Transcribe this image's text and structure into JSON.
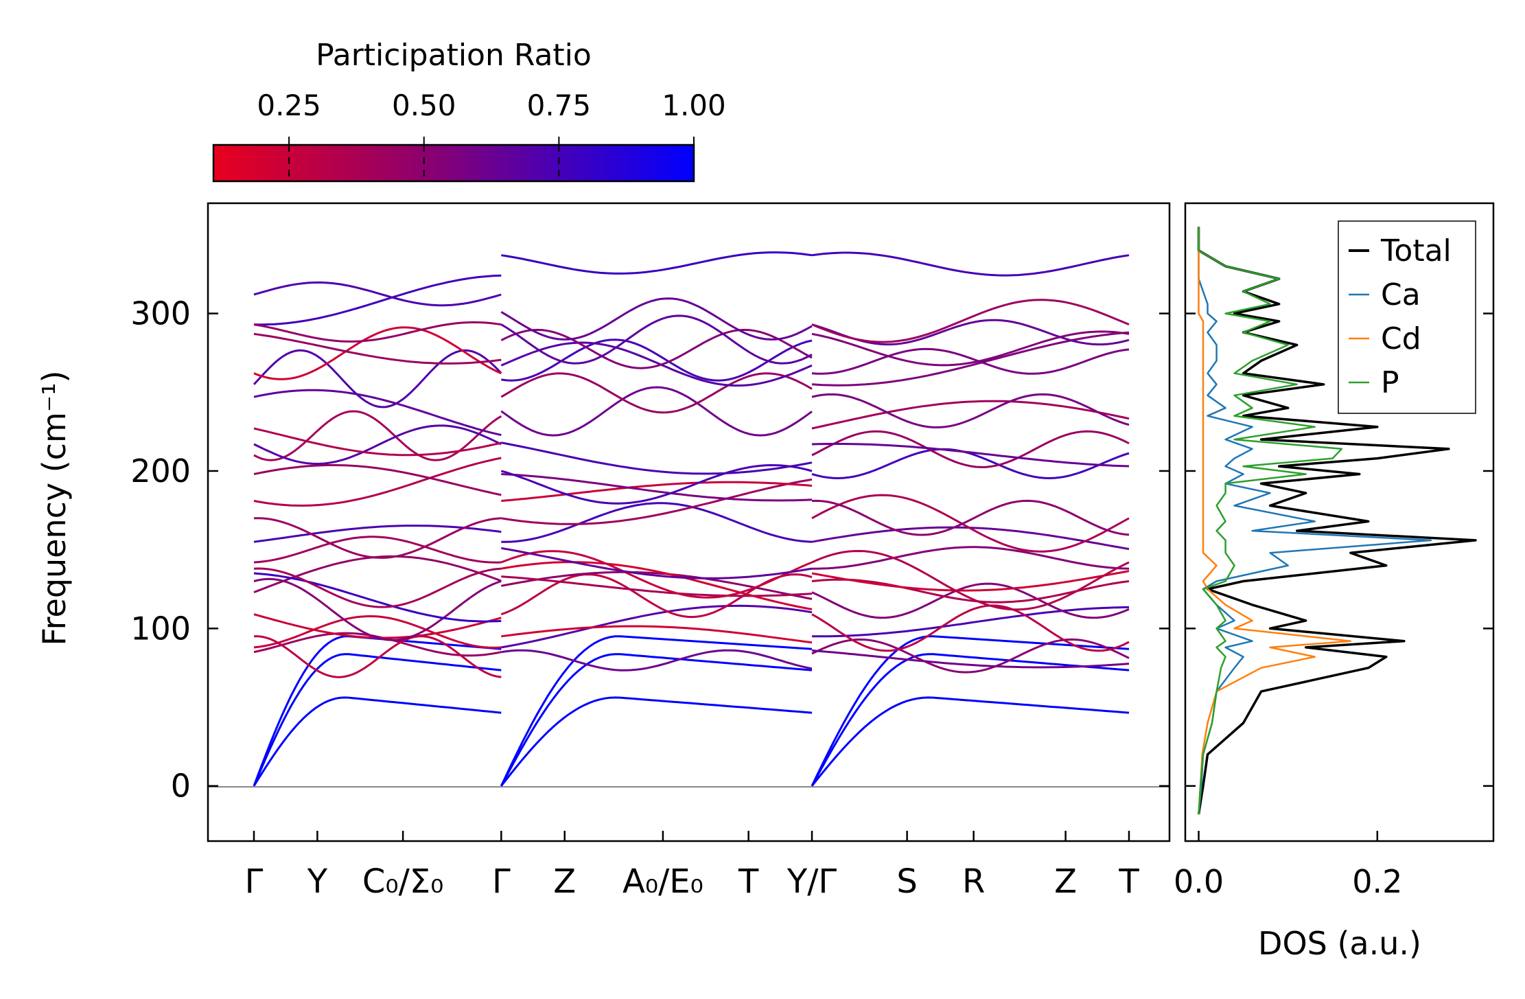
{
  "colorbar": {
    "title": "Participation Ratio",
    "ticks": [
      {
        "value": 0.25,
        "label": "0.25"
      },
      {
        "value": 0.5,
        "label": "0.50"
      },
      {
        "value": 0.75,
        "label": "0.75"
      },
      {
        "value": 1.0,
        "label": "1.00"
      }
    ],
    "range": [
      0.11,
      1.0
    ],
    "color_low": "#e8001e",
    "color_high": "#0000ff"
  },
  "chart_data": [
    {
      "type": "line",
      "name": "phonon-band-structure",
      "ylabel": "Frequency (cm⁻¹)",
      "ylim": [
        -35,
        370
      ],
      "yticks": [
        0,
        100,
        200,
        300
      ],
      "kpath_labels": [
        "Γ",
        "Y",
        "C₀/Σ₀",
        "Γ",
        "Z",
        "A₀/E₀",
        "T",
        "Y/Γ",
        "S",
        "R",
        "Z",
        "T"
      ],
      "kpath_positions": [
        0.0,
        0.2,
        0.47,
        0.78,
        0.98,
        1.29,
        1.56,
        1.76,
        2.06,
        2.27,
        2.56,
        2.76
      ],
      "segments": [
        [
          0.0,
          0.78
        ],
        [
          0.78,
          1.76
        ],
        [
          1.76,
          2.76
        ]
      ],
      "band_starts_at_segment": [
        [
          0,
          0,
          0,
          85,
          88,
          95,
          109,
          123,
          130,
          135,
          138,
          142,
          155,
          170,
          181,
          198,
          210,
          217,
          227,
          247,
          255,
          262,
          287,
          293,
          293,
          312
        ],
        [
          0,
          0,
          0,
          85,
          88,
          95,
          109,
          127,
          133,
          138,
          142,
          151,
          155,
          170,
          181,
          198,
          200,
          218,
          238,
          247,
          258,
          267,
          283,
          293,
          301,
          337
        ],
        [
          0,
          0,
          0,
          84,
          86,
          95,
          109,
          123,
          130,
          135,
          138,
          142,
          155,
          170,
          181,
          198,
          210,
          217,
          227,
          247,
          255,
          262,
          287,
          293,
          293,
          337
        ]
      ],
      "acoustic_band_max": [
        62,
        90,
        100
      ]
    },
    {
      "type": "line",
      "name": "density-of-states",
      "xlabel": "DOS (a.u.)",
      "xlim": [
        -0.015,
        0.33
      ],
      "xticks": [
        0.0,
        0.2
      ],
      "xtick_labels": [
        "0.0",
        "0.2"
      ],
      "ylim": [
        -35,
        370
      ],
      "legend_position": "top-right",
      "series": [
        {
          "name": "Total",
          "color": "#000000",
          "y": [
            -18,
            0,
            20,
            40,
            60,
            75,
            82,
            88,
            92,
            100,
            105,
            115,
            125,
            130,
            140,
            148,
            156,
            162,
            168,
            178,
            186,
            192,
            198,
            203,
            208,
            214,
            220,
            228,
            235,
            240,
            248,
            255,
            262,
            270,
            280,
            288,
            295,
            300,
            306,
            314,
            322,
            330,
            340,
            355
          ],
          "values": [
            0.0,
            0.005,
            0.01,
            0.05,
            0.07,
            0.19,
            0.21,
            0.12,
            0.23,
            0.08,
            0.12,
            0.06,
            0.01,
            0.05,
            0.21,
            0.17,
            0.31,
            0.11,
            0.19,
            0.08,
            0.12,
            0.07,
            0.18,
            0.09,
            0.2,
            0.28,
            0.07,
            0.2,
            0.05,
            0.1,
            0.05,
            0.14,
            0.05,
            0.07,
            0.11,
            0.05,
            0.09,
            0.04,
            0.09,
            0.05,
            0.09,
            0.03,
            0.0,
            0.0
          ]
        },
        {
          "name": "Ca",
          "color": "#1f77b4",
          "y": [
            -18,
            0,
            20,
            40,
            60,
            75,
            82,
            88,
            92,
            100,
            105,
            115,
            125,
            130,
            140,
            148,
            156,
            162,
            168,
            178,
            186,
            192,
            198,
            203,
            208,
            214,
            220,
            228,
            235,
            240,
            248,
            255,
            262,
            270,
            280,
            288,
            295,
            300,
            306,
            314,
            322,
            330,
            340,
            355
          ],
          "values": [
            0.0,
            0.003,
            0.005,
            0.015,
            0.02,
            0.04,
            0.05,
            0.03,
            0.06,
            0.02,
            0.04,
            0.02,
            0.005,
            0.02,
            0.1,
            0.08,
            0.26,
            0.06,
            0.13,
            0.04,
            0.08,
            0.03,
            0.05,
            0.03,
            0.04,
            0.06,
            0.03,
            0.06,
            0.01,
            0.03,
            0.01,
            0.02,
            0.01,
            0.02,
            0.02,
            0.01,
            0.02,
            0.01,
            0.01,
            0.005,
            0.0,
            0.0,
            0.0,
            0.0
          ]
        },
        {
          "name": "Cd",
          "color": "#ff7f0e",
          "y": [
            -18,
            0,
            20,
            40,
            60,
            75,
            82,
            88,
            92,
            100,
            105,
            115,
            125,
            130,
            140,
            148,
            156,
            162,
            168,
            178,
            186,
            192,
            198,
            203,
            208,
            214,
            220,
            228,
            235,
            240,
            248,
            255,
            262,
            270,
            280,
            288,
            295,
            300,
            306,
            314,
            322,
            330,
            340,
            355
          ],
          "values": [
            0.0,
            0.002,
            0.004,
            0.01,
            0.02,
            0.07,
            0.13,
            0.08,
            0.17,
            0.04,
            0.06,
            0.03,
            0.01,
            0.005,
            0.02,
            0.005,
            0.005,
            0.005,
            0.005,
            0.005,
            0.005,
            0.005,
            0.005,
            0.005,
            0.005,
            0.005,
            0.005,
            0.005,
            0.005,
            0.005,
            0.005,
            0.005,
            0.005,
            0.005,
            0.005,
            0.005,
            0.005,
            0.0,
            0.0,
            0.0,
            0.0,
            0.0,
            0.0,
            0.0
          ]
        },
        {
          "name": "P",
          "color": "#2ca02c",
          "y": [
            -18,
            0,
            20,
            40,
            60,
            75,
            82,
            88,
            92,
            100,
            105,
            115,
            125,
            130,
            140,
            148,
            156,
            162,
            168,
            178,
            186,
            192,
            198,
            203,
            208,
            214,
            220,
            228,
            235,
            240,
            248,
            255,
            262,
            270,
            280,
            288,
            295,
            300,
            306,
            314,
            322,
            330,
            340,
            355
          ],
          "values": [
            0.0,
            0.002,
            0.005,
            0.015,
            0.02,
            0.025,
            0.03,
            0.02,
            0.03,
            0.02,
            0.03,
            0.02,
            0.005,
            0.03,
            0.04,
            0.03,
            0.03,
            0.02,
            0.03,
            0.02,
            0.03,
            0.03,
            0.12,
            0.05,
            0.15,
            0.16,
            0.04,
            0.13,
            0.04,
            0.06,
            0.04,
            0.11,
            0.04,
            0.06,
            0.1,
            0.05,
            0.08,
            0.03,
            0.08,
            0.05,
            0.09,
            0.03,
            0.0,
            0.0
          ]
        }
      ]
    }
  ]
}
